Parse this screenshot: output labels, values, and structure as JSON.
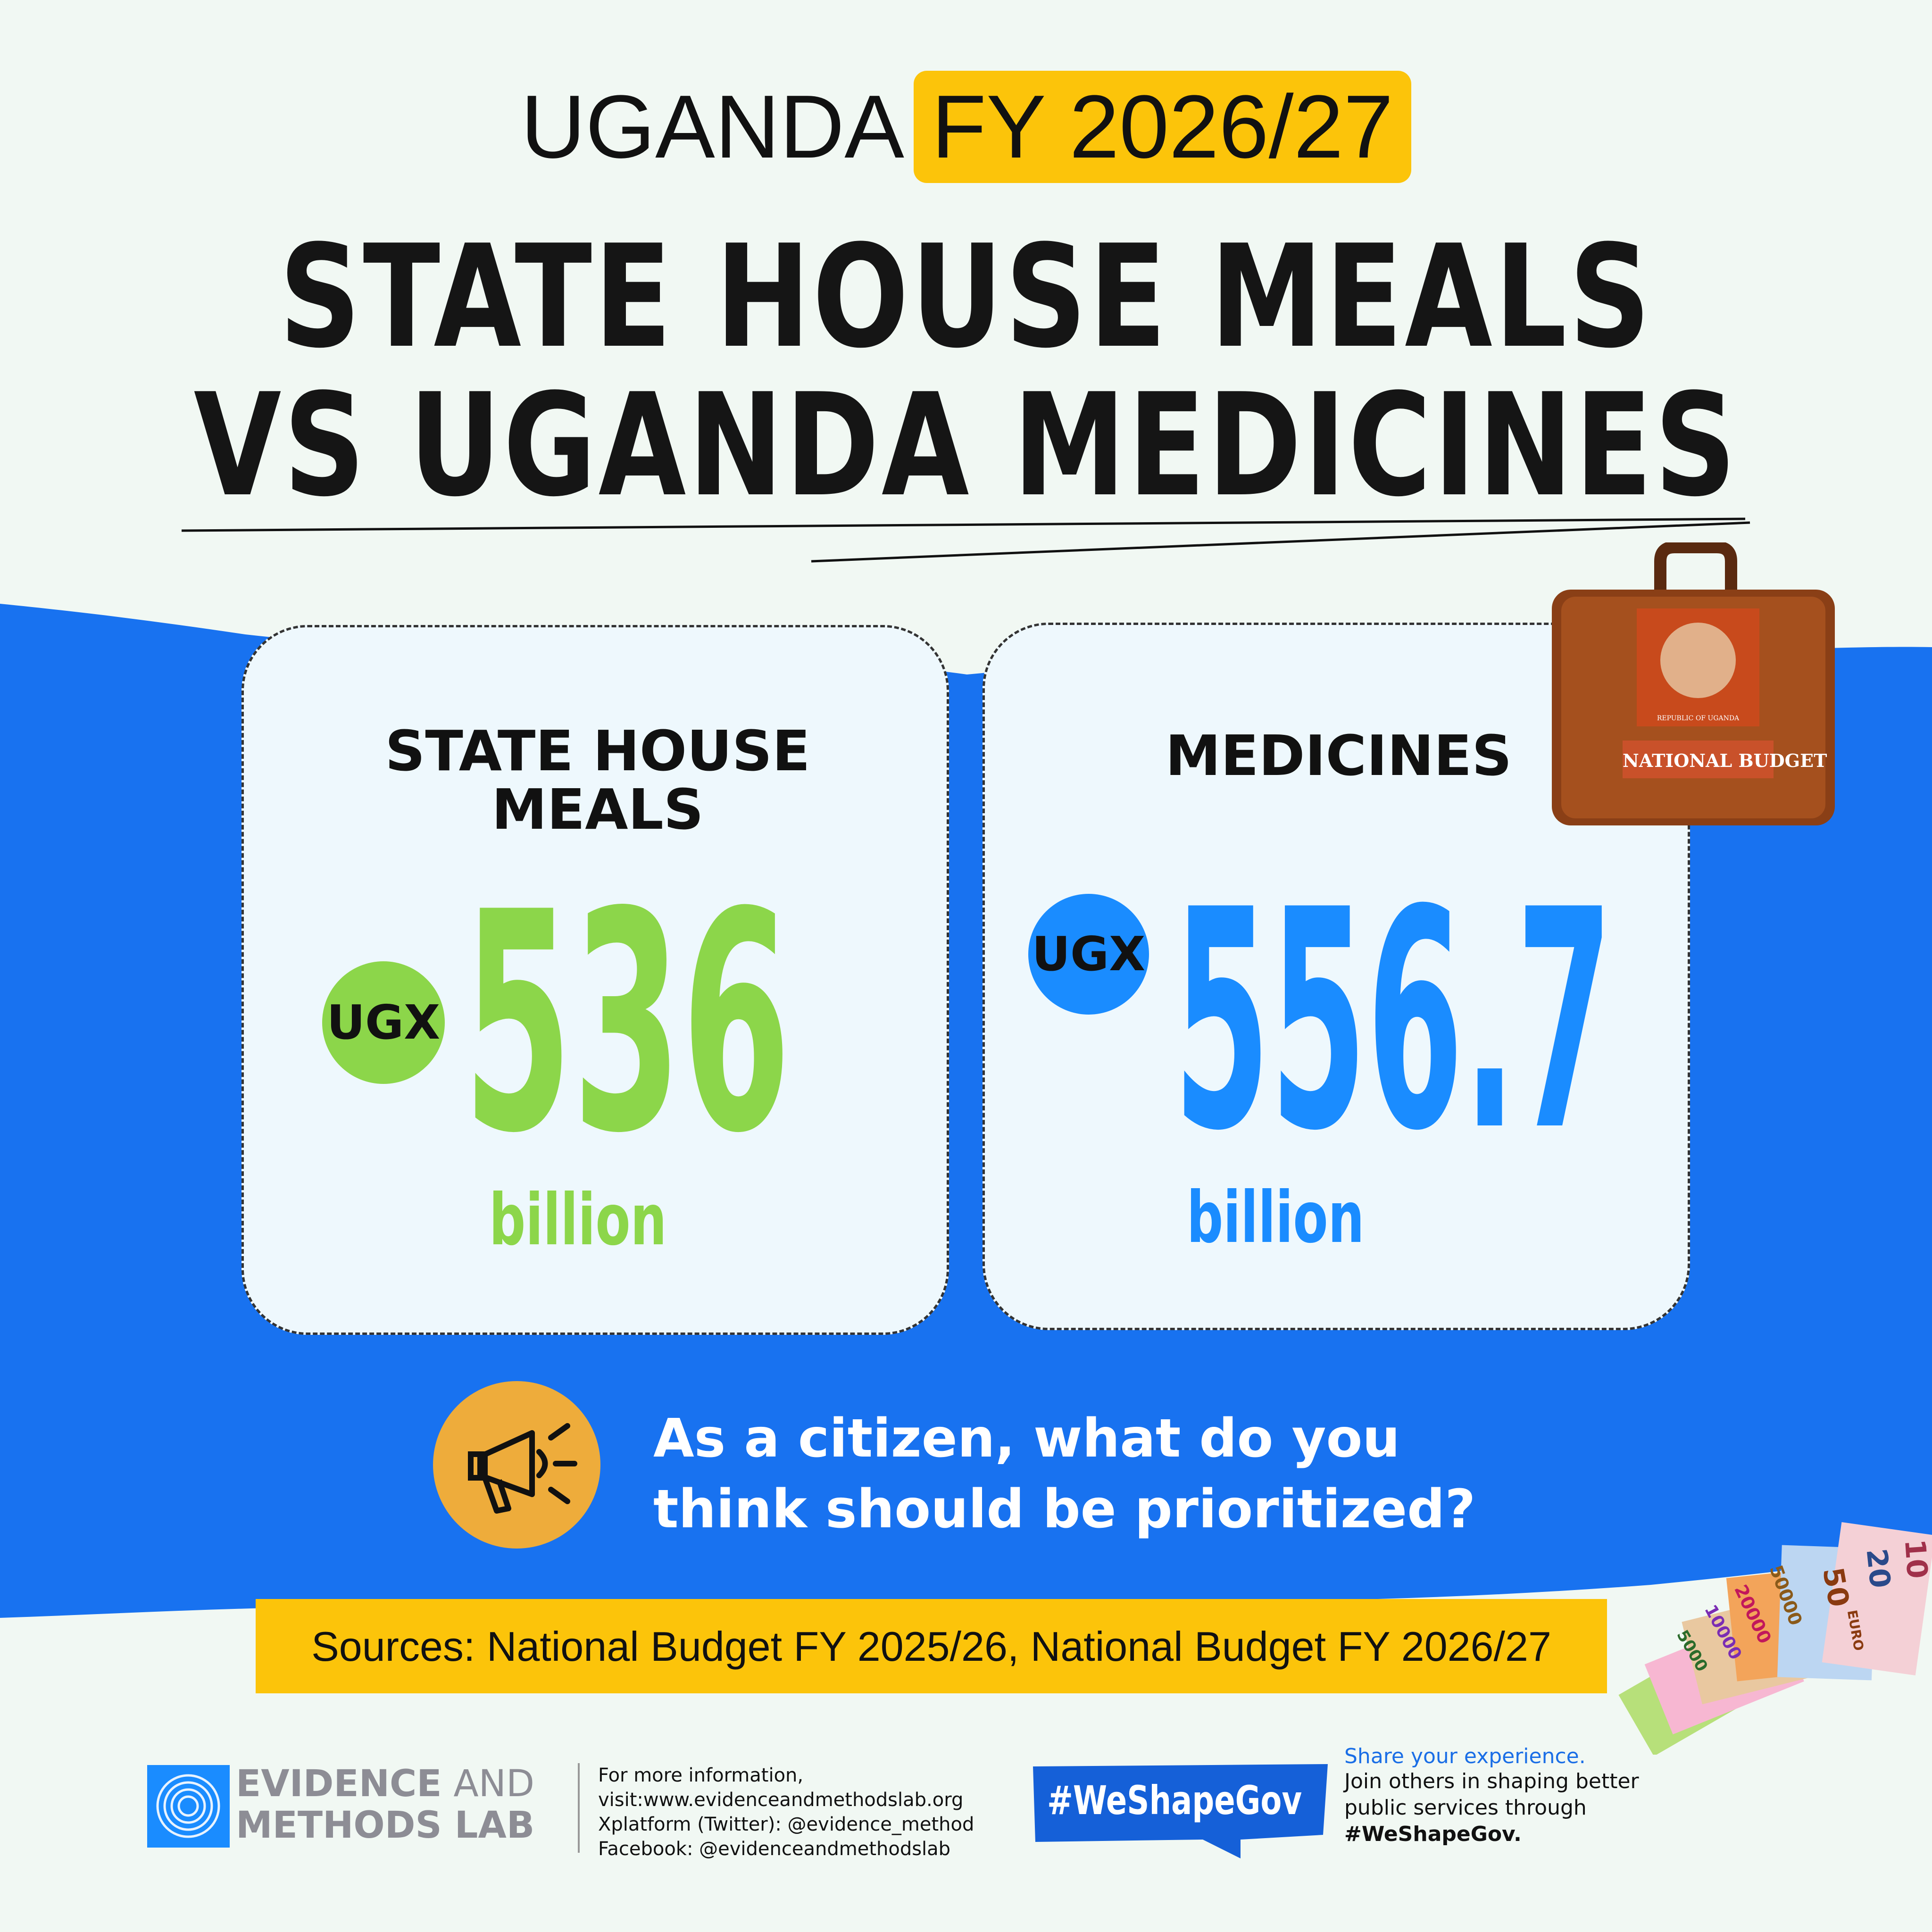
{
  "header": {
    "country": "UGANDA",
    "fiscal_year": "FY 2026/27",
    "headline_line1": "STATE HOUSE MEALS",
    "headline_line2": "VS UGANDA MEDICINES"
  },
  "cards": [
    {
      "title_line1": "STATE HOUSE",
      "title_line2": "MEALS",
      "currency": "UGX",
      "amount": "536",
      "unit": "billion",
      "color": "#8cd64a"
    },
    {
      "title_line1": "MEDICINES",
      "currency": "UGX",
      "amount": "556.7",
      "unit": "billion",
      "color": "#1a8cff"
    }
  ],
  "briefcase": {
    "label": "NATIONAL BUDGET",
    "emblem_text": "REPUBLIC OF UGANDA",
    "icon": "briefcase-icon"
  },
  "question": {
    "line1": "As a citizen, what do you",
    "line2": "think should be prioritized?",
    "icon": "megaphone-icon"
  },
  "sources": "Sources: National Budget FY 2025/26, National Budget FY 2026/27",
  "banknotes": {
    "icon": "banknotes-icon",
    "denominations": [
      "5000",
      "10000",
      "20000",
      "50000",
      "50",
      "20",
      "10",
      "EURO"
    ]
  },
  "footer": {
    "logo_word1": "EVIDENCE",
    "logo_word2": "AND",
    "logo_word3": "METHODS LAB",
    "info_lines": [
      "For more information,",
      "visit:www.evidenceandmethodslab.org",
      "Xplatform (Twitter): @evidence_method",
      "Facebook: @evidenceandmethodslab"
    ],
    "hashtag": "#WeShapeGov",
    "share_title": "Share your experience.",
    "share_line1": "Join others in shaping better",
    "share_line2": "public services through",
    "share_hashtag": "#WeShapeGov."
  },
  "colors": {
    "background": "#f1f8f3",
    "blue_band": "#1872f0",
    "accent_yellow": "#fcc40a",
    "green": "#8cd64a",
    "blue_number": "#1a8cff",
    "megaphone_circle": "#eeac3b",
    "hashtag_blue": "#1a6ee6"
  }
}
